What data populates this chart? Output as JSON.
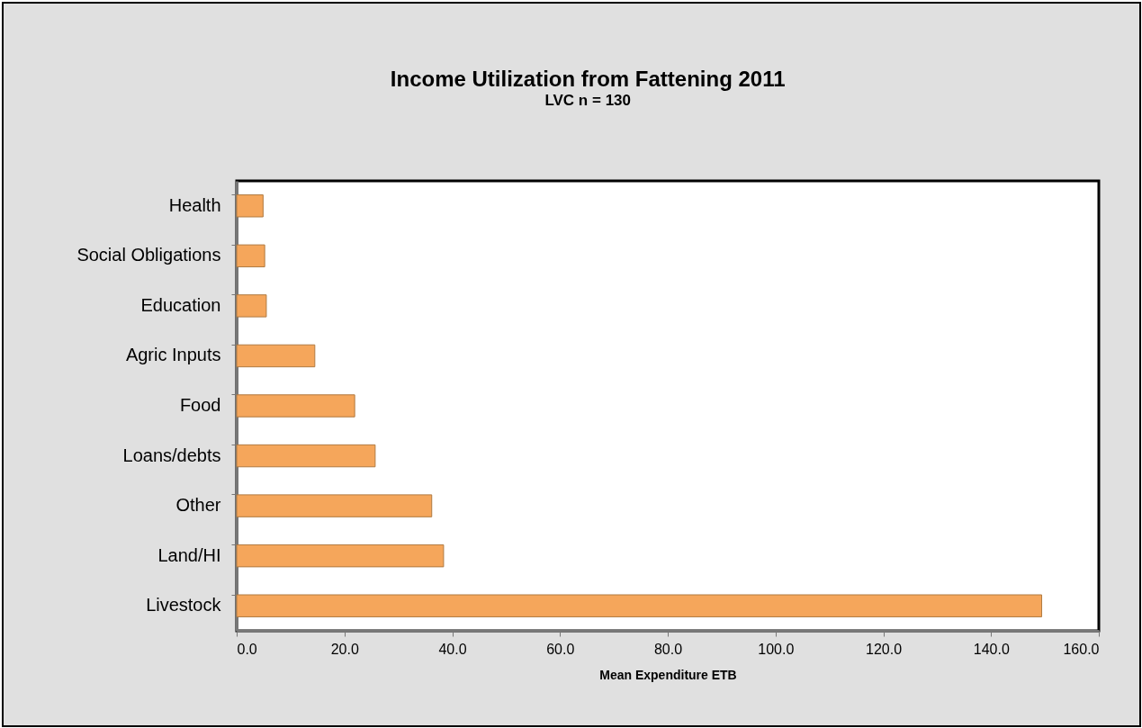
{
  "chart_data": {
    "type": "bar",
    "orientation": "horizontal",
    "title": "Income Utilization from Fattening 2011",
    "subtitle": "LVC n = 130",
    "xlabel": "Mean Expenditure ETB",
    "categories": [
      "Health",
      "Social Obligations",
      "Education",
      "Agric Inputs",
      "Food",
      "Loans/debts",
      "Other",
      "Land/HI",
      "Livestock"
    ],
    "values": [
      4.9,
      5.2,
      5.5,
      14.5,
      21.9,
      25.7,
      36.2,
      38.4,
      149.4
    ],
    "color": "#f5a65b",
    "xlim": [
      0,
      160
    ],
    "xticks": [
      {
        "value": 0,
        "label": "0.0"
      },
      {
        "value": 20,
        "label": "20.0"
      },
      {
        "value": 40,
        "label": "40.0"
      },
      {
        "value": 60,
        "label": "60.0"
      },
      {
        "value": 80,
        "label": "80.0"
      },
      {
        "value": 100,
        "label": "100.0"
      },
      {
        "value": 120,
        "label": "120.0"
      },
      {
        "value": 140,
        "label": "140.0"
      },
      {
        "value": 160,
        "label": "160.0"
      }
    ],
    "grid": false
  }
}
